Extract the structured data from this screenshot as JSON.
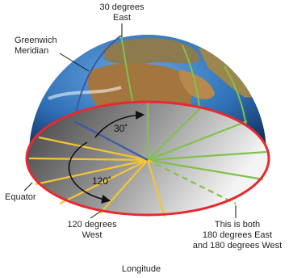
{
  "labels": {
    "east30_line1": "30 degrees",
    "east30_line2": "East",
    "greenwich_line1": "Greenwich",
    "greenwich_line2": "Meridian",
    "equator": "Equator",
    "west120_line1": "120 degrees",
    "west120_line2": "West",
    "dateline_line1": "This is both",
    "dateline_line2": "180 degrees East",
    "dateline_line3": "and 180 degrees West",
    "angle_30": "30˚",
    "angle_120": "120˚",
    "caption": "Longitude"
  },
  "colors": {
    "equator_rim": "#e8292f",
    "east_lines": "#7fc24a",
    "west_lines": "#f5c531",
    "prime_meridian": "#3b5aa6",
    "ocean": "#2f6fb6",
    "land": "#a3753f",
    "disc_light": "#f2f2f2",
    "disc_dark": "#555555"
  }
}
